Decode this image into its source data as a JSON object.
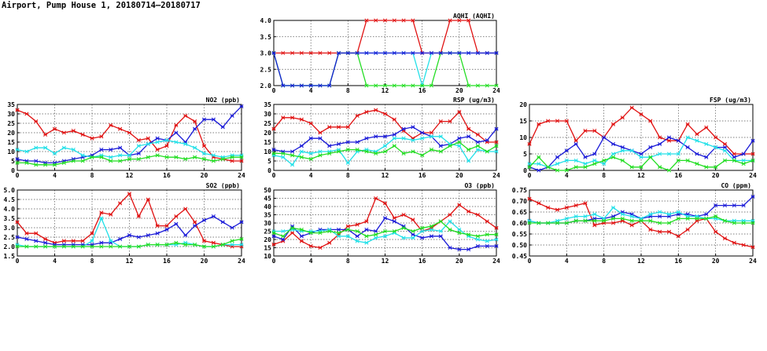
{
  "page": {
    "title": "Airport, Pump House 1, 20180714—20180717"
  },
  "colors": {
    "red": "#e01010",
    "blue": "#1a1ad8",
    "cyan": "#22e0e8",
    "green": "#22dd22",
    "grid": "#555555",
    "frame": "#000000"
  },
  "chart_data": [
    {
      "id": "aqhi",
      "type": "line",
      "title": "AQHI (AQHI)",
      "xlim": [
        0,
        24
      ],
      "ylim": [
        2.0,
        4.0
      ],
      "xticks": [
        "0",
        "4",
        "8",
        "12",
        "16",
        "20",
        "24"
      ],
      "yticks": [
        "2.0",
        "2.5",
        "3.0",
        "3.5",
        "4.0"
      ],
      "grid": true,
      "x": [
        0,
        1,
        2,
        3,
        4,
        5,
        6,
        7,
        8,
        9,
        10,
        11,
        12,
        13,
        14,
        15,
        16,
        17,
        18,
        19,
        20,
        21,
        22,
        23,
        24
      ],
      "series": [
        {
          "color": "red",
          "values": [
            3,
            3,
            3,
            3,
            3,
            3,
            3,
            3,
            3,
            3,
            4,
            4,
            4,
            4,
            4,
            4,
            3,
            3,
            3,
            4,
            4,
            4,
            3,
            3,
            3
          ]
        },
        {
          "color": "cyan",
          "values": [
            3,
            2,
            2,
            2,
            2,
            2,
            2,
            3,
            3,
            3,
            3,
            3,
            3,
            3,
            3,
            3,
            2,
            3,
            3,
            3,
            3,
            3,
            3,
            3,
            3
          ]
        },
        {
          "color": "green",
          "values": [
            3,
            2,
            2,
            2,
            2,
            2,
            2,
            3,
            3,
            3,
            2,
            2,
            2,
            2,
            2,
            2,
            2,
            2,
            3,
            3,
            3,
            2,
            2,
            2,
            2
          ]
        },
        {
          "color": "blue",
          "values": [
            3,
            2,
            2,
            2,
            2,
            2,
            2,
            3,
            3,
            3,
            3,
            3,
            3,
            3,
            3,
            3,
            3,
            3,
            3,
            3,
            3,
            3,
            3,
            3,
            3
          ]
        }
      ]
    },
    {
      "id": "no2",
      "type": "line",
      "title": "NO2 (ppb)",
      "xlim": [
        0,
        24
      ],
      "ylim": [
        0,
        35
      ],
      "xticks": [
        "0",
        "4",
        "8",
        "12",
        "16",
        "20",
        "24"
      ],
      "yticks": [
        "0",
        "5",
        "10",
        "15",
        "20",
        "25",
        "30",
        "35"
      ],
      "grid": true,
      "x": [
        0,
        1,
        2,
        3,
        4,
        5,
        6,
        7,
        8,
        9,
        10,
        11,
        12,
        13,
        14,
        15,
        16,
        17,
        18,
        19,
        20,
        21,
        22,
        23,
        24
      ],
      "series": [
        {
          "color": "red",
          "values": [
            32,
            30,
            26,
            19,
            22,
            20,
            21,
            19,
            17,
            18,
            24,
            22,
            20,
            16,
            17,
            11,
            13,
            24,
            29,
            26,
            13,
            7,
            6,
            5,
            5
          ]
        },
        {
          "color": "blue",
          "values": [
            6,
            5,
            5,
            4,
            4,
            5,
            6,
            7,
            8,
            11,
            11,
            12,
            8,
            9,
            14,
            17,
            16,
            20,
            15,
            22,
            27,
            27,
            23,
            29,
            34
          ]
        },
        {
          "color": "cyan",
          "values": [
            11,
            10,
            12,
            12,
            9,
            12,
            11,
            8,
            7,
            8,
            7,
            8,
            8,
            13,
            14,
            15,
            16,
            15,
            14,
            12,
            9,
            8,
            7,
            8,
            8
          ]
        },
        {
          "color": "green",
          "values": [
            4,
            4,
            3,
            3,
            3,
            4,
            5,
            5,
            7,
            7,
            5,
            5,
            6,
            6,
            7,
            8,
            7,
            7,
            6,
            7,
            6,
            5,
            6,
            7,
            7
          ]
        }
      ]
    },
    {
      "id": "rsp",
      "type": "line",
      "title": "RSP (ug/m3)",
      "xlim": [
        0,
        24
      ],
      "ylim": [
        0,
        35
      ],
      "xticks": [
        "0",
        "4",
        "8",
        "12",
        "16",
        "20",
        "24"
      ],
      "yticks": [
        "0",
        "5",
        "10",
        "15",
        "20",
        "25",
        "30",
        "35"
      ],
      "grid": true,
      "x": [
        0,
        1,
        2,
        3,
        4,
        5,
        6,
        7,
        8,
        9,
        10,
        11,
        12,
        13,
        14,
        15,
        16,
        17,
        18,
        19,
        20,
        21,
        22,
        23,
        24
      ],
      "series": [
        {
          "color": "red",
          "values": [
            22,
            28,
            28,
            27,
            25,
            20,
            23,
            23,
            23,
            29,
            31,
            32,
            30,
            27,
            21,
            17,
            20,
            20,
            26,
            26,
            31,
            22,
            19,
            15,
            15
          ]
        },
        {
          "color": "blue",
          "values": [
            11,
            10,
            10,
            13,
            17,
            17,
            13,
            14,
            15,
            15,
            17,
            18,
            18,
            19,
            22,
            23,
            20,
            18,
            13,
            14,
            17,
            18,
            15,
            16,
            22
          ]
        },
        {
          "color": "cyan",
          "values": [
            8,
            7,
            3,
            10,
            9,
            10,
            10,
            11,
            4,
            10,
            11,
            10,
            13,
            17,
            17,
            16,
            17,
            18,
            18,
            14,
            13,
            5,
            11,
            10,
            10
          ]
        },
        {
          "color": "green",
          "values": [
            9,
            9,
            8,
            7,
            6,
            8,
            9,
            10,
            11,
            11,
            10,
            9,
            10,
            13,
            9,
            10,
            8,
            11,
            10,
            13,
            15,
            11,
            13,
            10,
            13
          ]
        }
      ]
    },
    {
      "id": "fsp",
      "type": "line",
      "title": "FSP (ug/m3)",
      "xlim": [
        0,
        24
      ],
      "ylim": [
        0,
        20
      ],
      "xticks": [
        "0",
        "4",
        "8",
        "12",
        "16",
        "20",
        "24"
      ],
      "yticks": [
        "0",
        "5",
        "10",
        "15",
        "20"
      ],
      "grid": true,
      "x": [
        0,
        1,
        2,
        3,
        4,
        5,
        6,
        7,
        8,
        9,
        10,
        11,
        12,
        13,
        14,
        15,
        16,
        17,
        18,
        19,
        20,
        21,
        22,
        23,
        24
      ],
      "series": [
        {
          "color": "red",
          "values": [
            8,
            14,
            15,
            15,
            15,
            9,
            12,
            12,
            10,
            14,
            16,
            19,
            17,
            15,
            10,
            9,
            9,
            14,
            11,
            13,
            10,
            8,
            5,
            5,
            5
          ]
        },
        {
          "color": "blue",
          "values": [
            1,
            0,
            1,
            4,
            6,
            8,
            4,
            5,
            10,
            8,
            7,
            6,
            5,
            7,
            8,
            10,
            9,
            7,
            5,
            4,
            7,
            7,
            4,
            5,
            9
          ]
        },
        {
          "color": "cyan",
          "values": [
            2,
            2,
            1,
            2,
            3,
            3,
            2,
            3,
            2,
            5,
            6,
            6,
            4,
            4,
            5,
            5,
            5,
            10,
            9,
            8,
            7,
            6,
            3,
            3,
            3
          ]
        },
        {
          "color": "green",
          "values": [
            1,
            4,
            1,
            0,
            0,
            1,
            1,
            2,
            3,
            4,
            3,
            1,
            1,
            4,
            1,
            0,
            3,
            3,
            2,
            1,
            1,
            3,
            3,
            2,
            3
          ]
        }
      ]
    },
    {
      "id": "so2",
      "type": "line",
      "title": "SO2 (ppb)",
      "xlim": [
        0,
        24
      ],
      "ylim": [
        1.5,
        5.0
      ],
      "xticks": [
        "0",
        "4",
        "8",
        "12",
        "16",
        "20",
        "24"
      ],
      "yticks": [
        "1.5",
        "2.0",
        "2.5",
        "3.0",
        "3.5",
        "4.0",
        "4.5",
        "5.0"
      ],
      "grid": true,
      "x": [
        0,
        1,
        2,
        3,
        4,
        5,
        6,
        7,
        8,
        9,
        10,
        11,
        12,
        13,
        14,
        15,
        16,
        17,
        18,
        19,
        20,
        21,
        22,
        23,
        24
      ],
      "series": [
        {
          "color": "red",
          "values": [
            3.3,
            2.7,
            2.7,
            2.4,
            2.2,
            2.3,
            2.3,
            2.3,
            2.7,
            3.8,
            3.7,
            4.3,
            4.8,
            3.6,
            4.5,
            3.1,
            3.1,
            3.6,
            4.0,
            3.3,
            2.3,
            2.2,
            2.1,
            2.0,
            2.0
          ]
        },
        {
          "color": "blue",
          "values": [
            2.5,
            2.4,
            2.3,
            2.2,
            2.1,
            2.1,
            2.1,
            2.1,
            2.1,
            2.2,
            2.2,
            2.4,
            2.6,
            2.5,
            2.6,
            2.7,
            2.9,
            3.2,
            2.6,
            3.1,
            3.4,
            3.6,
            3.3,
            3.0,
            3.3
          ]
        },
        {
          "color": "cyan",
          "values": [
            2.1,
            2.0,
            2.0,
            2.0,
            2.0,
            2.0,
            2.0,
            2.0,
            2.3,
            3.5,
            2.3,
            2.0,
            2.0,
            2.0,
            2.1,
            2.1,
            2.1,
            2.1,
            2.2,
            2.1,
            2.0,
            2.0,
            2.1,
            2.1,
            2.1
          ]
        },
        {
          "color": "green",
          "values": [
            2.0,
            2.0,
            2.0,
            2.0,
            2.0,
            2.0,
            2.0,
            2.0,
            2.0,
            2.0,
            2.0,
            2.0,
            2.0,
            2.0,
            2.1,
            2.1,
            2.1,
            2.2,
            2.1,
            2.1,
            2.0,
            2.0,
            2.1,
            2.3,
            2.4
          ]
        }
      ]
    },
    {
      "id": "o3",
      "type": "line",
      "title": "O3 (ppb)",
      "xlim": [
        0,
        24
      ],
      "ylim": [
        10,
        50
      ],
      "xticks": [
        "0",
        "4",
        "8",
        "12",
        "16",
        "20",
        "24"
      ],
      "yticks": [
        "10",
        "15",
        "20",
        "25",
        "30",
        "35",
        "40",
        "45",
        "50"
      ],
      "grid": true,
      "x": [
        0,
        1,
        2,
        3,
        4,
        5,
        6,
        7,
        8,
        9,
        10,
        11,
        12,
        13,
        14,
        15,
        16,
        17,
        18,
        19,
        20,
        21,
        22,
        23,
        24
      ],
      "series": [
        {
          "color": "red",
          "values": [
            17,
            19,
            24,
            19,
            16,
            15,
            18,
            23,
            28,
            29,
            31,
            45,
            42,
            33,
            35,
            32,
            25,
            27,
            31,
            35,
            41,
            37,
            35,
            31,
            27
          ]
        },
        {
          "color": "blue",
          "values": [
            22,
            20,
            28,
            22,
            24,
            26,
            26,
            26,
            26,
            22,
            26,
            25,
            33,
            31,
            28,
            23,
            21,
            22,
            22,
            15,
            14,
            14,
            16,
            16,
            16
          ]
        },
        {
          "color": "cyan",
          "values": [
            25,
            25,
            26,
            25,
            25,
            25,
            26,
            22,
            22,
            19,
            18,
            21,
            22,
            24,
            21,
            21,
            25,
            26,
            25,
            31,
            26,
            22,
            20,
            19,
            20
          ]
        },
        {
          "color": "green",
          "values": [
            24,
            22,
            27,
            26,
            24,
            24,
            25,
            24,
            26,
            25,
            22,
            23,
            25,
            25,
            27,
            25,
            27,
            28,
            31,
            26,
            24,
            23,
            22,
            23,
            23
          ]
        }
      ]
    },
    {
      "id": "co",
      "type": "line",
      "title": "CO (ppm)",
      "xlim": [
        0,
        24
      ],
      "ylim": [
        0.45,
        0.75
      ],
      "xticks": [
        "0",
        "4",
        "8",
        "12",
        "16",
        "20",
        "24"
      ],
      "yticks": [
        "0.45",
        "0.50",
        "0.55",
        "0.60",
        "0.65",
        "0.70",
        "0.75"
      ],
      "grid": true,
      "x": [
        0,
        1,
        2,
        3,
        4,
        5,
        6,
        7,
        8,
        9,
        10,
        11,
        12,
        13,
        14,
        15,
        16,
        17,
        18,
        19,
        20,
        21,
        22,
        23,
        24
      ],
      "series": [
        {
          "color": "red",
          "values": [
            0.71,
            0.69,
            0.67,
            0.66,
            0.67,
            0.68,
            0.69,
            0.59,
            0.6,
            0.6,
            0.61,
            0.59,
            0.61,
            0.57,
            0.56,
            0.56,
            0.54,
            0.57,
            0.61,
            0.62,
            0.56,
            0.53,
            0.51,
            0.5,
            0.49
          ]
        },
        {
          "color": "blue",
          "values": [
            0.61,
            0.6,
            0.6,
            0.6,
            0.6,
            0.61,
            0.61,
            0.62,
            0.62,
            0.63,
            0.65,
            0.64,
            0.62,
            0.63,
            0.63,
            0.63,
            0.64,
            0.64,
            0.63,
            0.64,
            0.68,
            0.68,
            0.68,
            0.68,
            0.72
          ]
        },
        {
          "color": "cyan",
          "values": [
            0.61,
            0.6,
            0.6,
            0.61,
            0.62,
            0.63,
            0.63,
            0.64,
            0.62,
            0.67,
            0.64,
            0.63,
            0.62,
            0.64,
            0.65,
            0.64,
            0.65,
            0.63,
            0.63,
            0.62,
            0.62,
            0.61,
            0.61,
            0.61,
            0.61
          ]
        },
        {
          "color": "green",
          "values": [
            0.6,
            0.6,
            0.6,
            0.6,
            0.6,
            0.61,
            0.61,
            0.61,
            0.61,
            0.62,
            0.62,
            0.61,
            0.61,
            0.61,
            0.6,
            0.6,
            0.62,
            0.62,
            0.62,
            0.62,
            0.63,
            0.61,
            0.6,
            0.6,
            0.6
          ]
        }
      ]
    }
  ]
}
